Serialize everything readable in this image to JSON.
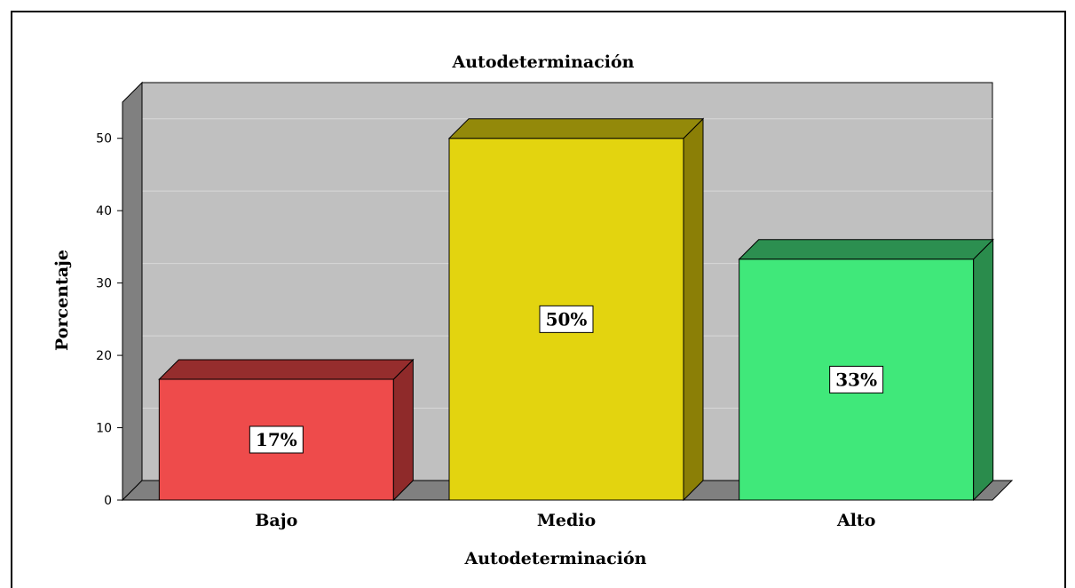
{
  "chart_data": {
    "type": "bar",
    "title": "Autodeterminación",
    "xlabel": "Autodeterminación",
    "ylabel": "Porcentaje",
    "categories": [
      "Bajo",
      "Medio",
      "Alto"
    ],
    "values": [
      16.7,
      50,
      33.3
    ],
    "data_labels": [
      "17%",
      "50%",
      "33%"
    ],
    "colors": [
      "#ee4b4b",
      "#e3d40f",
      "#40e87a"
    ],
    "side_colors": [
      "#8f2a2a",
      "#8b7f06",
      "#2a8c4c"
    ],
    "top_colors": [
      "#952d2d",
      "#93890a",
      "#2c8f50"
    ],
    "ylim": [
      0,
      55
    ],
    "yticks": [
      0,
      10,
      20,
      30,
      40,
      50
    ],
    "grid": true,
    "background": "#c0c0c0",
    "wall_color": "#808080"
  }
}
